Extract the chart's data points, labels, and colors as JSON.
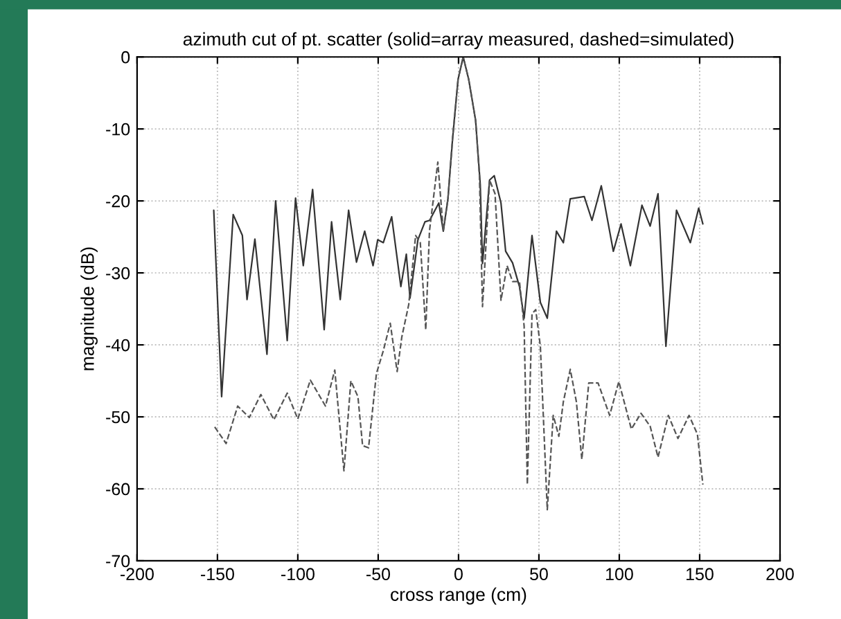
{
  "chart_data": {
    "type": "line",
    "title": "azimuth cut of pt. scatter (solid=array measured, dashed=simulated)",
    "xlabel": "cross range (cm)",
    "ylabel": "magnitude (dB)",
    "xlim": [
      -200,
      200
    ],
    "xticks": [
      -200,
      -150,
      -100,
      -50,
      0,
      50,
      100,
      150,
      200
    ],
    "ylim": [
      -70,
      0
    ],
    "yticks": [
      -70,
      -60,
      -50,
      -40,
      -30,
      -20,
      -10,
      0
    ],
    "grid": true,
    "marker": "none",
    "series": [
      {
        "color": "#333333",
        "line_style": "solid",
        "x": [
          -152.3,
          -147.4,
          -140.2,
          -134.5,
          -131.6,
          -126.7,
          -119.2,
          -113.8,
          -106.6,
          -101.4,
          -96.6,
          -90.8,
          -83.6,
          -79,
          -73.6,
          -68.4,
          -63.5,
          -58.4,
          -53.2,
          -50.3,
          -46.8,
          -41.6,
          -35.9,
          -32.5,
          -30.2,
          -25.3,
          -20.9,
          -18,
          -12.3,
          -9.5,
          -6.6,
          -3.7,
          -0.3,
          2.9,
          6.3,
          10.6,
          13.5,
          14.9,
          19.3,
          22.2,
          26.4,
          29.3,
          33.6,
          37.9,
          40.8,
          45.7,
          50.9,
          55.2,
          60.9,
          65.2,
          69.5,
          78.2,
          83,
          88.8,
          96.3,
          101.1,
          106.9,
          114.1,
          119.2,
          124.1,
          129,
          135.6,
          144.2,
          149.4,
          152
        ],
        "values": [
          -21.3,
          -47.2,
          -21.9,
          -24.8,
          -33.7,
          -25.3,
          -41.3,
          -20,
          -39.4,
          -19.6,
          -29,
          -18.4,
          -37.9,
          -22.9,
          -33.7,
          -21.3,
          -28.5,
          -24.2,
          -29,
          -25.4,
          -25.8,
          -22.2,
          -31.9,
          -27.4,
          -33.5,
          -25.4,
          -22.9,
          -22.7,
          -20.3,
          -24.2,
          -19.7,
          -11.3,
          -3.1,
          0,
          -3.1,
          -8.8,
          -17.7,
          -28.7,
          -17.1,
          -16.5,
          -20.3,
          -27,
          -28.6,
          -31.9,
          -36.3,
          -24.8,
          -34.1,
          -36.3,
          -24.2,
          -25.8,
          -19.7,
          -19.4,
          -22.7,
          -17.9,
          -27,
          -23.2,
          -29,
          -20.6,
          -23.5,
          -19,
          -40.2,
          -21.3,
          -25.8,
          -21,
          -23.2
        ]
      },
      {
        "color": "#555555",
        "line_style": "dashed",
        "x": [
          -151.7,
          -144.6,
          -137.4,
          -130.2,
          -123,
          -114.9,
          -106.6,
          -100,
          -92.2,
          -82.8,
          -77,
          -71.3,
          -67,
          -62.6,
          -59.7,
          -56,
          -51.1,
          -46.8,
          -42.5,
          -38.2,
          -35.3,
          -31,
          -26.7,
          -23.8,
          -20.4,
          -18.1,
          -12.9,
          -9.5,
          -6.6,
          -3.7,
          -0.3,
          2.9,
          6.3,
          10.6,
          13,
          14.9,
          19.3,
          22.7,
          26.4,
          30.2,
          33.6,
          37.9,
          40.8,
          42.8,
          45.7,
          48,
          50.9,
          55.2,
          58.9,
          62.4,
          65.2,
          69.5,
          73.3,
          76.7,
          81,
          86.8,
          94,
          99.7,
          107.5,
          113.5,
          119.2,
          124.1,
          130.5,
          136.5,
          143.4,
          148.6,
          152
        ],
        "values": [
          -51.4,
          -53.7,
          -48.5,
          -50.1,
          -46.9,
          -50.4,
          -46.7,
          -50.3,
          -44.9,
          -48.5,
          -43.5,
          -57.5,
          -45,
          -47.2,
          -54,
          -54.3,
          -44,
          -40.8,
          -37,
          -43.7,
          -38.9,
          -34.4,
          -24.8,
          -25.8,
          -37.9,
          -24.2,
          -14.6,
          -24.2,
          -19.7,
          -11.3,
          -3.1,
          0,
          -3.1,
          -8.8,
          -16.5,
          -34.7,
          -17.1,
          -19,
          -33.8,
          -29,
          -31.2,
          -31.2,
          -37.4,
          -59.4,
          -35.7,
          -35.1,
          -40.2,
          -62.9,
          -49.8,
          -52.7,
          -47.9,
          -43.4,
          -47.9,
          -55.9,
          -45.3,
          -45.3,
          -49.8,
          -45.1,
          -51.7,
          -49.5,
          -51.3,
          -55.6,
          -49.8,
          -53,
          -49.8,
          -52.4,
          -59.4
        ]
      }
    ]
  }
}
